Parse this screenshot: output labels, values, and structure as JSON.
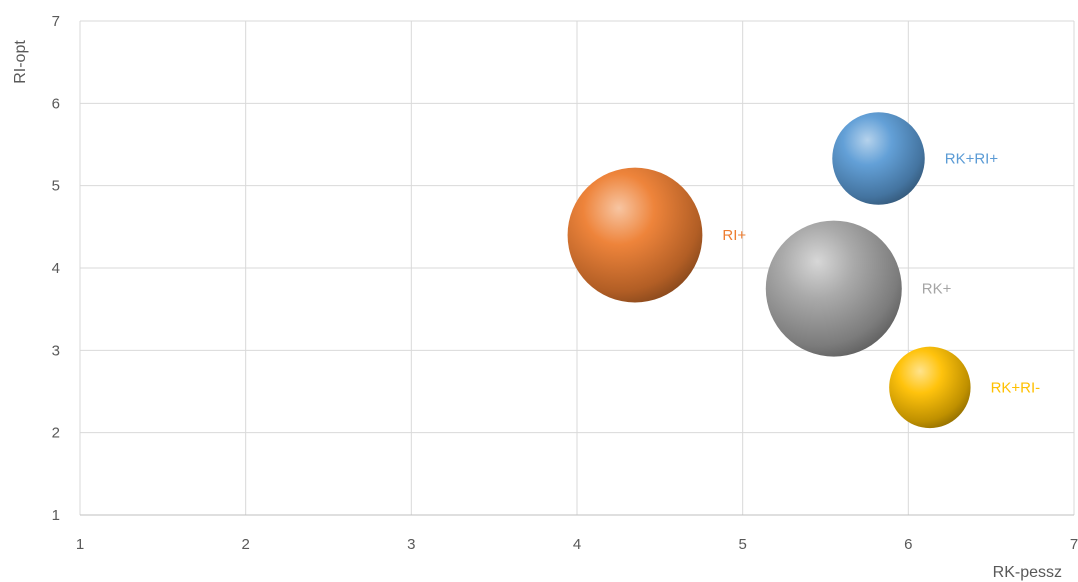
{
  "chart_data": {
    "type": "bubble",
    "title": "",
    "xlabel": "RK-pessz",
    "ylabel": "RI-opt",
    "xlim": [
      1,
      7
    ],
    "ylim": [
      1,
      7
    ],
    "xticks": [
      1,
      2,
      3,
      4,
      5,
      6,
      7
    ],
    "yticks": [
      1,
      2,
      3,
      4,
      5,
      6,
      7
    ],
    "grid": true,
    "series": [
      {
        "name": "RK+RI+",
        "x": 5.82,
        "y": 5.33,
        "size": 0.8,
        "color": "#5B9BD5",
        "label_color": "#5B9BD5"
      },
      {
        "name": "RI+",
        "x": 4.35,
        "y": 4.4,
        "size": 1.7,
        "color": "#ED7D31",
        "label_color": "#ED7D31"
      },
      {
        "name": "RK+",
        "x": 5.55,
        "y": 3.75,
        "size": 1.73,
        "color": "#A5A5A5",
        "label_color": "#A5A5A5"
      },
      {
        "name": "RK+RI-",
        "x": 6.13,
        "y": 2.55,
        "size": 0.62,
        "color": "#FFC000",
        "label_color": "#FFC000"
      }
    ]
  }
}
